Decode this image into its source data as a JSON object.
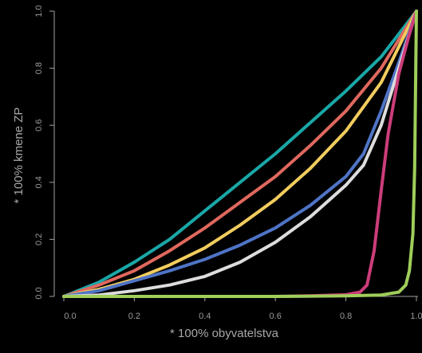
{
  "chart_data": {
    "type": "line",
    "title": "",
    "xlabel": "* 100% obyvatelstva",
    "ylabel": "* 100% kmene ZP",
    "xlim": [
      0,
      1
    ],
    "ylim": [
      0,
      1
    ],
    "grid": false,
    "x_ticks": [
      "0.0",
      "0.2",
      "0.4",
      "0.6",
      "0.8",
      "1.0"
    ],
    "y_ticks": [
      "0.0",
      "0.2",
      "0.4",
      "0.6",
      "0.8",
      "1.0"
    ],
    "series": [
      {
        "color": "#1aa7a7",
        "points": [
          [
            0,
            0
          ],
          [
            0.1,
            0.05
          ],
          [
            0.2,
            0.12
          ],
          [
            0.3,
            0.2
          ],
          [
            0.4,
            0.3
          ],
          [
            0.5,
            0.4
          ],
          [
            0.6,
            0.5
          ],
          [
            0.7,
            0.61
          ],
          [
            0.8,
            0.72
          ],
          [
            0.9,
            0.84
          ],
          [
            1,
            1
          ]
        ]
      },
      {
        "color": "#e0685e",
        "points": [
          [
            0,
            0
          ],
          [
            0.1,
            0.04
          ],
          [
            0.2,
            0.09
          ],
          [
            0.3,
            0.16
          ],
          [
            0.4,
            0.24
          ],
          [
            0.5,
            0.33
          ],
          [
            0.6,
            0.42
          ],
          [
            0.7,
            0.53
          ],
          [
            0.8,
            0.65
          ],
          [
            0.9,
            0.8
          ],
          [
            1,
            1
          ]
        ]
      },
      {
        "color": "#f2cd5e",
        "points": [
          [
            0,
            0
          ],
          [
            0.1,
            0.025
          ],
          [
            0.2,
            0.06
          ],
          [
            0.3,
            0.11
          ],
          [
            0.4,
            0.17
          ],
          [
            0.5,
            0.25
          ],
          [
            0.6,
            0.34
          ],
          [
            0.7,
            0.45
          ],
          [
            0.8,
            0.58
          ],
          [
            0.9,
            0.75
          ],
          [
            1,
            1
          ]
        ]
      },
      {
        "color": "#4f74c6",
        "points": [
          [
            0,
            0
          ],
          [
            0.1,
            0.02
          ],
          [
            0.2,
            0.055
          ],
          [
            0.3,
            0.09
          ],
          [
            0.4,
            0.13
          ],
          [
            0.5,
            0.18
          ],
          [
            0.6,
            0.24
          ],
          [
            0.7,
            0.32
          ],
          [
            0.8,
            0.42
          ],
          [
            0.85,
            0.5
          ],
          [
            0.9,
            0.65
          ],
          [
            0.95,
            0.82
          ],
          [
            1,
            1
          ]
        ]
      },
      {
        "color": "#dddddd",
        "points": [
          [
            0,
            0
          ],
          [
            0.1,
            0.005
          ],
          [
            0.2,
            0.02
          ],
          [
            0.3,
            0.04
          ],
          [
            0.4,
            0.07
          ],
          [
            0.5,
            0.12
          ],
          [
            0.6,
            0.19
          ],
          [
            0.7,
            0.28
          ],
          [
            0.8,
            0.39
          ],
          [
            0.85,
            0.46
          ],
          [
            0.9,
            0.6
          ],
          [
            0.95,
            0.8
          ],
          [
            1,
            1
          ]
        ]
      },
      {
        "color": "#cc3d7a",
        "points": [
          [
            0,
            0
          ],
          [
            0.2,
            0
          ],
          [
            0.4,
            0
          ],
          [
            0.6,
            0
          ],
          [
            0.7,
            0.002
          ],
          [
            0.8,
            0.006
          ],
          [
            0.84,
            0.015
          ],
          [
            0.86,
            0.04
          ],
          [
            0.88,
            0.16
          ],
          [
            0.9,
            0.37
          ],
          [
            0.92,
            0.57
          ],
          [
            0.95,
            0.78
          ],
          [
            0.98,
            0.92
          ],
          [
            1,
            1
          ]
        ]
      },
      {
        "color": "#9fce5a",
        "points": [
          [
            0,
            0
          ],
          [
            0.3,
            0
          ],
          [
            0.6,
            0
          ],
          [
            0.8,
            0.002
          ],
          [
            0.9,
            0.005
          ],
          [
            0.95,
            0.015
          ],
          [
            0.97,
            0.04
          ],
          [
            0.98,
            0.09
          ],
          [
            0.99,
            0.22
          ],
          [
            0.995,
            0.45
          ],
          [
            1,
            1
          ]
        ]
      }
    ]
  }
}
